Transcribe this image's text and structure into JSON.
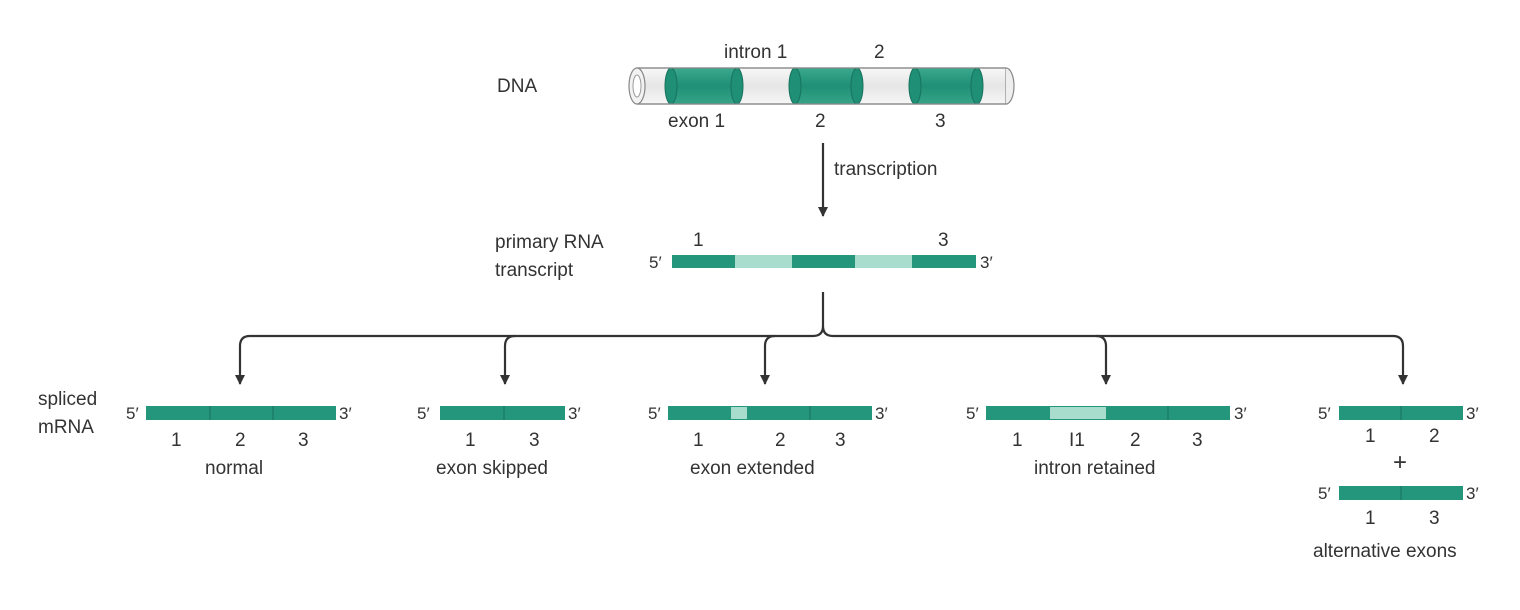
{
  "colors": {
    "exon": "#24967c",
    "exon_light": "#3aab90",
    "intron_rna": "#a8dccc",
    "dna_intron": "#eeeeee",
    "arrow": "#333333",
    "text": "#333333"
  },
  "dna": {
    "label": "DNA",
    "intron_labels": [
      "intron 1",
      "2"
    ],
    "exon_labels": [
      "exon 1",
      "2",
      "3"
    ]
  },
  "transcription": {
    "label": "transcription"
  },
  "primary": {
    "label_line1": "primary RNA",
    "label_line2": "transcript",
    "five": "5′",
    "three": "3′",
    "exon_labels": [
      "1",
      "3"
    ]
  },
  "spliced_label": {
    "line1": "spliced",
    "line2": "mRNA"
  },
  "variants": [
    {
      "name": "normal",
      "numbers": [
        "1",
        "2",
        "3"
      ]
    },
    {
      "name": "exon skipped",
      "numbers": [
        "1",
        "3"
      ]
    },
    {
      "name": "exon extended",
      "numbers": [
        "1",
        "2",
        "3"
      ]
    },
    {
      "name": "intron retained",
      "numbers": [
        "1",
        "I1",
        "2",
        "3"
      ]
    },
    {
      "name": "alternative exons",
      "top_numbers": [
        "1",
        "2"
      ],
      "plus": "+",
      "bottom_numbers": [
        "1",
        "3"
      ]
    }
  ],
  "ends": {
    "five": "5′",
    "three": "3′"
  }
}
